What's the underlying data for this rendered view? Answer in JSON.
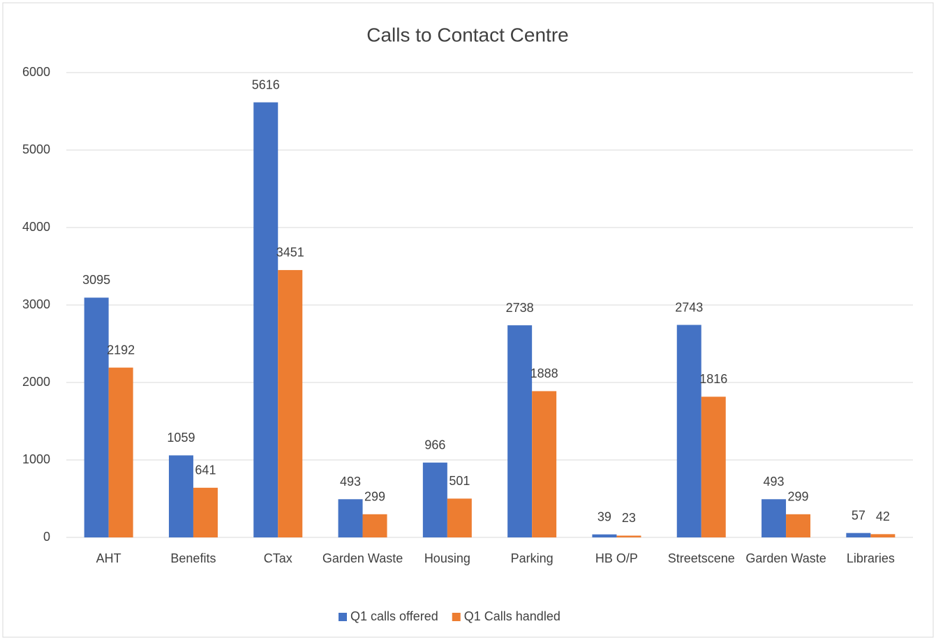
{
  "chart_data": {
    "type": "bar",
    "title": "Calls to Contact Centre",
    "categories": [
      "AHT",
      "Benefits",
      "CTax",
      "Garden Waste",
      "Housing",
      "Parking",
      "HB O/P",
      "Streetscene",
      "Garden Waste",
      "Libraries"
    ],
    "series": [
      {
        "name": "Q1 calls offered",
        "color": "#4472c4",
        "values": [
          3095,
          1059,
          5616,
          493,
          966,
          2738,
          39,
          2743,
          493,
          57
        ]
      },
      {
        "name": "Q1 Calls handled",
        "color": "#ed7d31",
        "values": [
          2192,
          641,
          3451,
          299,
          501,
          1888,
          23,
          1816,
          299,
          42
        ]
      }
    ],
    "ylim": [
      0,
      6000
    ],
    "yticks": [
      0,
      1000,
      2000,
      3000,
      4000,
      5000,
      6000
    ],
    "grid": true,
    "legend": "bottom"
  }
}
